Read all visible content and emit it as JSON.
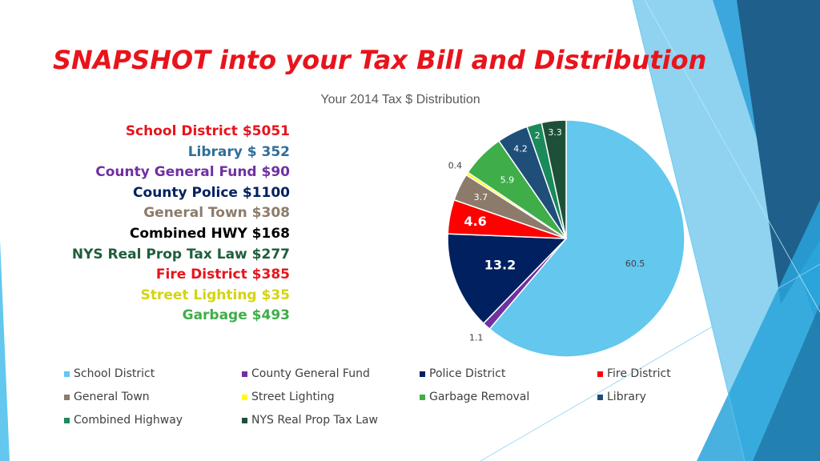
{
  "slide": {
    "title": "SNAPSHOT into your Tax Bill and Distribution",
    "summary": [
      {
        "text": "School District $5051",
        "color": "#e8141c"
      },
      {
        "text": "Library $ 352",
        "color": "#2f6e9b"
      },
      {
        "text": "County General Fund $90",
        "color": "#7030a0"
      },
      {
        "text": "County Police $1100",
        "color": "#002060"
      },
      {
        "text": "General Town $308",
        "color": "#8c7b6b"
      },
      {
        "text": "Combined HWY $168",
        "color": "#000000"
      },
      {
        "text": "NYS Real Prop Tax Law $277",
        "color": "#1e5e3b"
      },
      {
        "text": "Fire District $385",
        "color": "#e8141c"
      },
      {
        "text": "Street Lighting $35",
        "color": "#d4d40f"
      },
      {
        "text": "Garbage $493",
        "color": "#3fae49"
      }
    ]
  },
  "chart_data": {
    "type": "pie",
    "title": "Your 2014 Tax $ Distribution",
    "legend_position": "bottom",
    "slices": [
      {
        "name": "School District",
        "value": 60.5,
        "label": "60.5",
        "color": "#63c7ee"
      },
      {
        "name": "County General Fund",
        "value": 1.1,
        "label": "1.1",
        "color": "#7030a0"
      },
      {
        "name": "Police District",
        "value": 13.2,
        "label": "13.2",
        "color": "#002060"
      },
      {
        "name": "Fire District",
        "value": 4.6,
        "label": "4.6",
        "color": "#ff0000"
      },
      {
        "name": "General Town",
        "value": 3.7,
        "label": "3.7",
        "color": "#8c7b6b"
      },
      {
        "name": "Street Lighting",
        "value": 0.4,
        "label": "0.4",
        "color": "#ffff00"
      },
      {
        "name": "Garbage Removal",
        "value": 5.9,
        "label": "5.9",
        "color": "#3fae49"
      },
      {
        "name": "Library",
        "value": 4.2,
        "label": "4.2",
        "color": "#1f4e79"
      },
      {
        "name": "Combined Highway",
        "value": 2.0,
        "label": "2",
        "color": "#1a8a5a"
      },
      {
        "name": "NYS Real Prop Tax Law",
        "value": 3.3,
        "label": "3.3",
        "color": "#1e5038"
      }
    ]
  }
}
